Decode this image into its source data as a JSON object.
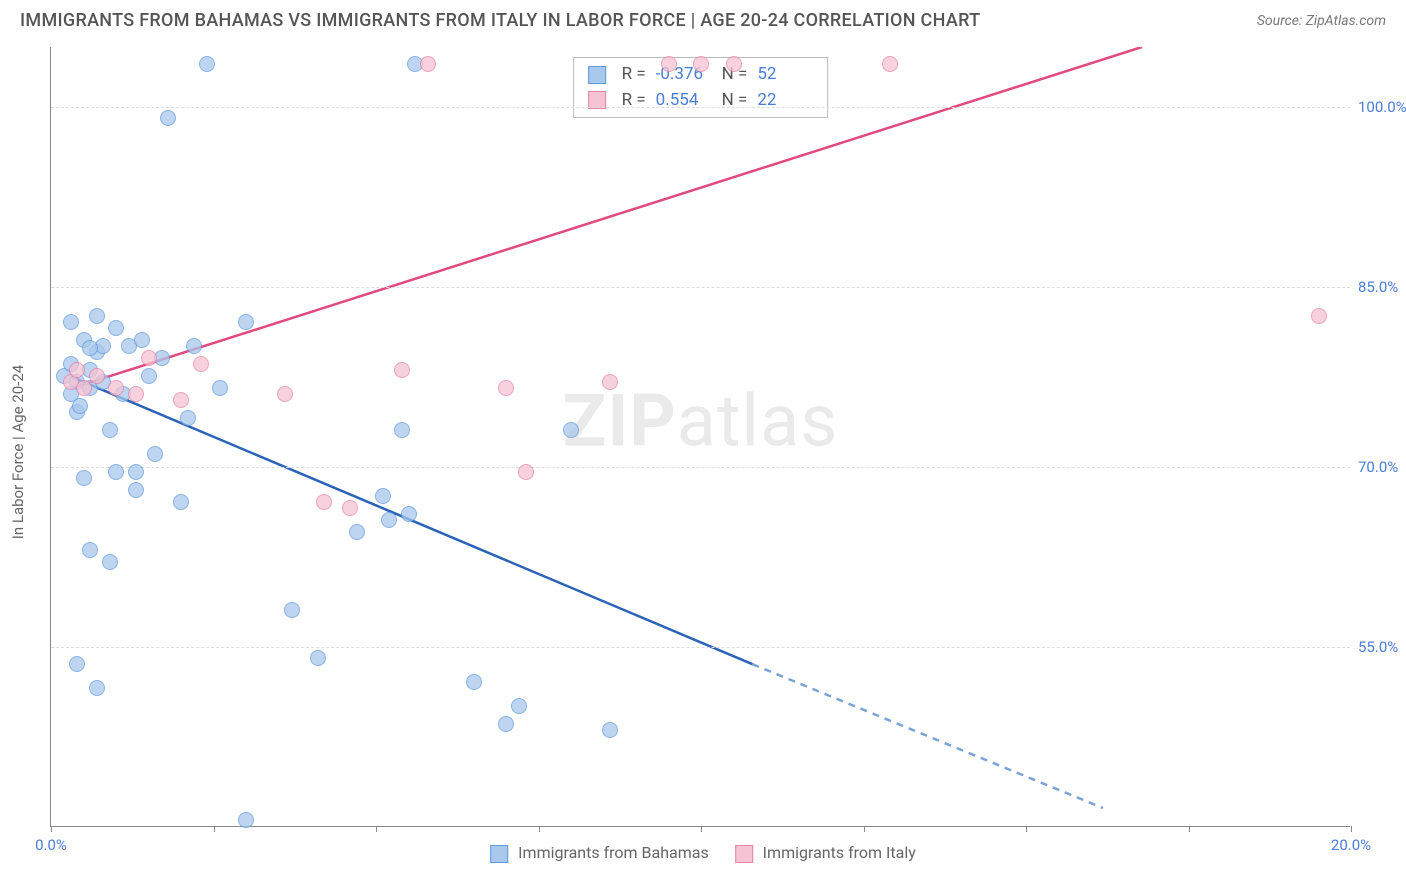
{
  "title": "IMMIGRANTS FROM BAHAMAS VS IMMIGRANTS FROM ITALY IN LABOR FORCE | AGE 20-24 CORRELATION CHART",
  "source": "Source: ZipAtlas.com",
  "watermark_bold": "ZIP",
  "watermark_rest": "atlas",
  "y_axis_label": "In Labor Force | Age 20-24",
  "chart": {
    "type": "scatter",
    "xlim": [
      0,
      20
    ],
    "ylim": [
      40,
      105
    ],
    "x_ticks": [
      0,
      20
    ],
    "x_tick_labels": [
      "0.0%",
      "20.0%"
    ],
    "x_minor_ticks": [
      0,
      2.5,
      5,
      7.5,
      10,
      12.5,
      15,
      17.5,
      20
    ],
    "y_ticks": [
      55,
      70,
      85,
      100
    ],
    "y_tick_labels": [
      "55.0%",
      "70.0%",
      "85.0%",
      "100.0%"
    ],
    "grid_color": "#dddddd",
    "background_color": "#ffffff",
    "axis_color": "#888888",
    "tick_label_color": "#4a7dd6"
  },
  "series": {
    "bahamas": {
      "label": "Immigrants from Bahamas",
      "fill_color": "#a8c8ec",
      "stroke_color": "#6199dd",
      "trend_color": "#2a63b8",
      "trend_dash_color": "#7aa3d8",
      "R_label": "R =",
      "R_value": "-0.376",
      "N_label": "N =",
      "N_value": "52",
      "trend": {
        "x1": 0.3,
        "y1": 77.5,
        "x2": 10.8,
        "y2": 53.5,
        "x2_dash": 16.2,
        "y2_dash": 41.5
      },
      "points": [
        [
          0.2,
          77.5
        ],
        [
          0.3,
          78.5
        ],
        [
          0.4,
          77
        ],
        [
          0.5,
          80.5
        ],
        [
          0.6,
          76.5
        ],
        [
          0.7,
          79.5
        ],
        [
          0.3,
          76
        ],
        [
          0.4,
          74.5
        ],
        [
          0.6,
          78
        ],
        [
          0.8,
          77
        ],
        [
          1.0,
          81.5
        ],
        [
          1.2,
          80
        ],
        [
          1.1,
          76
        ],
        [
          0.9,
          73
        ],
        [
          1.4,
          80.5
        ],
        [
          1.5,
          77.5
        ],
        [
          0.5,
          69
        ],
        [
          0.7,
          82.5
        ],
        [
          0.3,
          82
        ],
        [
          1.8,
          99
        ],
        [
          2.4,
          103.5
        ],
        [
          5.6,
          103.5
        ],
        [
          1.0,
          69.5
        ],
        [
          1.3,
          68
        ],
        [
          2.1,
          74
        ],
        [
          2.6,
          76.5
        ],
        [
          3.0,
          82
        ],
        [
          0.6,
          63
        ],
        [
          0.9,
          62
        ],
        [
          1.3,
          69.5
        ],
        [
          1.6,
          71
        ],
        [
          2.0,
          67
        ],
        [
          0.4,
          53.5
        ],
        [
          0.7,
          51.5
        ],
        [
          3.0,
          40.5
        ],
        [
          3.7,
          58
        ],
        [
          4.1,
          54
        ],
        [
          4.7,
          64.5
        ],
        [
          5.2,
          65.5
        ],
        [
          5.1,
          67.5
        ],
        [
          5.4,
          73
        ],
        [
          5.5,
          66
        ],
        [
          6.5,
          52
        ],
        [
          7.0,
          48.5
        ],
        [
          7.2,
          50
        ],
        [
          8.6,
          48
        ],
        [
          8.0,
          73
        ],
        [
          1.7,
          79
        ],
        [
          2.2,
          80
        ],
        [
          0.8,
          80
        ],
        [
          0.6,
          79.8
        ],
        [
          0.45,
          75
        ]
      ]
    },
    "italy": {
      "label": "Immigrants from Italy",
      "fill_color": "#f5c3d3",
      "stroke_color": "#e683a6",
      "trend_color": "#e14a7e",
      "R_label": "R =",
      "R_value": "0.554",
      "N_label": "N =",
      "N_value": "22",
      "trend": {
        "x1": 0.3,
        "y1": 76.5,
        "x2": 16.8,
        "y2": 105
      },
      "points": [
        [
          0.3,
          77
        ],
        [
          0.4,
          78
        ],
        [
          0.5,
          76.5
        ],
        [
          0.7,
          77.5
        ],
        [
          1.0,
          76.5
        ],
        [
          1.3,
          76
        ],
        [
          1.5,
          79
        ],
        [
          2.0,
          75.5
        ],
        [
          2.3,
          78.5
        ],
        [
          3.6,
          76
        ],
        [
          4.2,
          67
        ],
        [
          4.6,
          66.5
        ],
        [
          5.4,
          78
        ],
        [
          5.8,
          103.5
        ],
        [
          7.0,
          76.5
        ],
        [
          7.3,
          69.5
        ],
        [
          8.6,
          77
        ],
        [
          9.5,
          103.5
        ],
        [
          10.0,
          103.5
        ],
        [
          10.5,
          103.5
        ],
        [
          12.9,
          103.5
        ],
        [
          19.5,
          82.5
        ]
      ]
    }
  },
  "legend": {
    "bahamas": "Immigrants from Bahamas",
    "italy": "Immigrants from Italy"
  }
}
